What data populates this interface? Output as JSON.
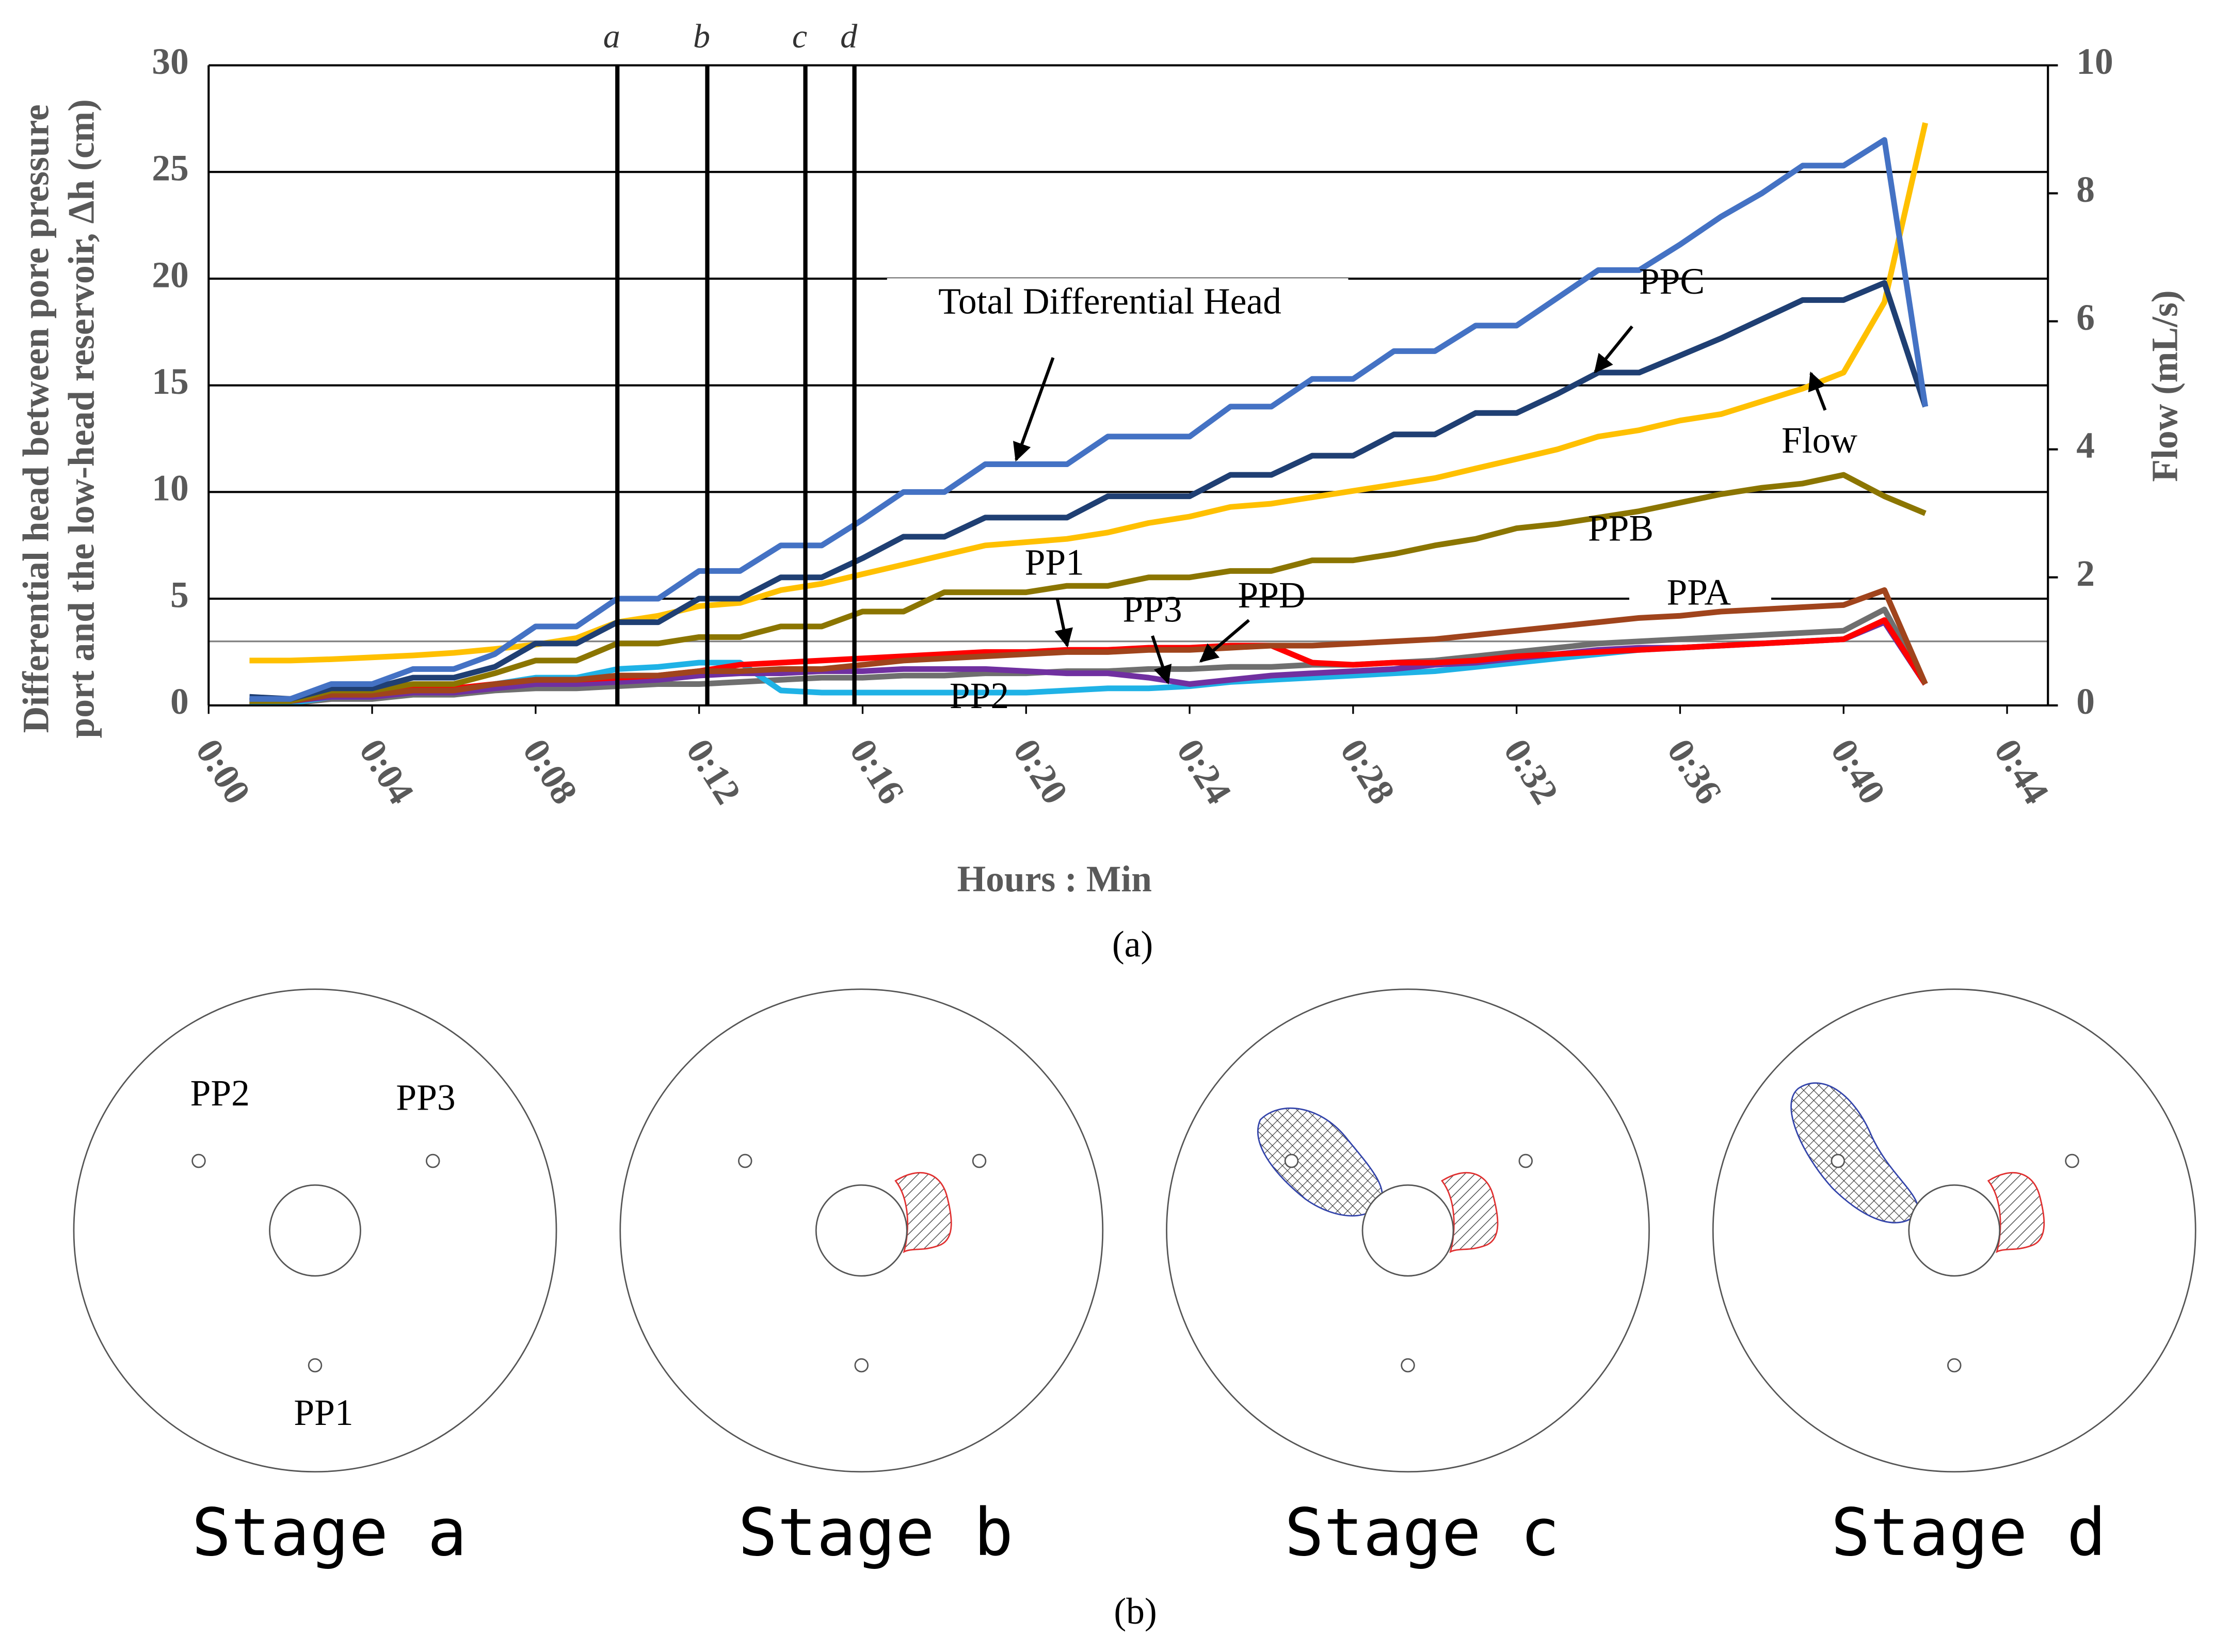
{
  "chart_data": {
    "type": "line",
    "xlabel": "Hours : Min",
    "ylabel": [
      "Differential head between pore pressure",
      "port and the low-head reservoir, Δh (cm)"
    ],
    "y2label": "Flow (mL/s)",
    "caption": "(a)",
    "xlim": [
      0,
      45
    ],
    "ylim": [
      0,
      30
    ],
    "y2lim": [
      0,
      10
    ],
    "xticks": [
      {
        "value": 0,
        "label": "0:00"
      },
      {
        "value": 4,
        "label": "0:04"
      },
      {
        "value": 8,
        "label": "0:08"
      },
      {
        "value": 12,
        "label": "0:12"
      },
      {
        "value": 16,
        "label": "0:16"
      },
      {
        "value": 20,
        "label": "0:20"
      },
      {
        "value": 24,
        "label": "0:24"
      },
      {
        "value": 28,
        "label": "0:28"
      },
      {
        "value": 32,
        "label": "0:32"
      },
      {
        "value": 36,
        "label": "0:36"
      },
      {
        "value": 40,
        "label": "0:40"
      },
      {
        "value": 44,
        "label": "0:44"
      }
    ],
    "yticks": [
      0,
      5,
      10,
      15,
      20,
      25,
      30
    ],
    "y2ticks": [
      0,
      2,
      4,
      6,
      8,
      10
    ],
    "grid": true,
    "hlines": [
      3
    ],
    "markers": [
      {
        "label": "a",
        "x": 10
      },
      {
        "label": "b",
        "x": 12.2
      },
      {
        "label": "c",
        "x": 14.6
      },
      {
        "label": "d",
        "x": 15.8
      }
    ],
    "x": [
      1,
      2,
      3,
      4,
      5,
      6,
      7,
      8,
      9,
      10,
      11,
      12,
      13,
      14,
      15,
      16,
      17,
      18,
      19,
      20,
      21,
      22,
      23,
      24,
      25,
      26,
      27,
      28,
      29,
      30,
      31,
      32,
      33,
      34,
      35,
      36,
      37,
      38,
      39,
      40,
      41,
      42
    ],
    "series": [
      {
        "name": "Total Differential Head",
        "color": "#4472c4",
        "values": [
          0.3,
          0.3,
          1,
          1,
          1.7,
          1.7,
          2.4,
          3.7,
          3.7,
          5,
          5,
          6.3,
          6.3,
          7.5,
          7.5,
          8.7,
          10,
          10,
          11.3,
          11.3,
          11.3,
          12.6,
          12.6,
          12.6,
          14,
          14,
          15.3,
          15.3,
          16.6,
          16.6,
          17.8,
          17.8,
          19.1,
          20.4,
          20.4,
          21.6,
          22.9,
          24,
          25.3,
          25.3,
          26.5,
          14
        ]
      },
      {
        "name": "PPC",
        "color": "#1f3f73",
        "values": [
          0.4,
          0.3,
          0.8,
          0.8,
          1.3,
          1.3,
          1.8,
          2.9,
          2.9,
          3.9,
          3.9,
          5,
          5,
          6,
          6,
          6.9,
          7.9,
          7.9,
          8.8,
          8.8,
          8.8,
          9.8,
          9.8,
          9.8,
          10.8,
          10.8,
          11.7,
          11.7,
          12.7,
          12.7,
          13.7,
          13.7,
          14.6,
          15.6,
          15.6,
          16.4,
          17.2,
          18.1,
          19,
          19,
          19.8,
          14
        ]
      },
      {
        "name": "Flow",
        "color": "#ffc000",
        "axis": "y2",
        "values": [
          0.7,
          0.7,
          0.72,
          0.75,
          0.78,
          0.82,
          0.88,
          0.95,
          1.05,
          1.3,
          1.4,
          1.55,
          1.6,
          1.8,
          1.9,
          2.05,
          2.2,
          2.35,
          2.5,
          2.55,
          2.6,
          2.7,
          2.85,
          2.95,
          3.1,
          3.15,
          3.25,
          3.35,
          3.45,
          3.55,
          3.7,
          3.85,
          4,
          4.2,
          4.3,
          4.45,
          4.55,
          4.75,
          4.95,
          5.2,
          6.3,
          9.1
        ]
      },
      {
        "name": "PPB",
        "color": "#8b7500",
        "values": [
          0.2,
          0.2,
          0.7,
          0.7,
          1,
          1,
          1.5,
          2.1,
          2.1,
          2.9,
          2.9,
          3.2,
          3.2,
          3.7,
          3.7,
          4.4,
          4.4,
          5.3,
          5.3,
          5.3,
          5.6,
          5.6,
          6,
          6,
          6.3,
          6.3,
          6.8,
          6.8,
          7.1,
          7.5,
          7.8,
          8.3,
          8.5,
          8.8,
          9.1,
          9.5,
          9.9,
          10.2,
          10.4,
          10.8,
          9.8,
          9
        ]
      },
      {
        "name": "PPA",
        "color": "#a0441c",
        "values": [
          0.2,
          0.2,
          0.5,
          0.5,
          0.7,
          0.7,
          1,
          1.2,
          1.2,
          1.4,
          1.4,
          1.6,
          1.6,
          1.7,
          1.7,
          1.9,
          2.1,
          2.2,
          2.3,
          2.4,
          2.5,
          2.5,
          2.6,
          2.6,
          2.7,
          2.8,
          2.8,
          2.9,
          3,
          3.1,
          3.3,
          3.5,
          3.7,
          3.9,
          4.1,
          4.2,
          4.4,
          4.5,
          4.6,
          4.7,
          5.4,
          1
        ]
      },
      {
        "name": "PP1",
        "color": "#ff0000",
        "values": [
          0.2,
          0.2,
          0.5,
          0.5,
          0.8,
          0.8,
          1,
          1.2,
          1.2,
          1.3,
          1.4,
          1.6,
          1.9,
          2,
          2.1,
          2.2,
          2.3,
          2.4,
          2.5,
          2.5,
          2.6,
          2.6,
          2.7,
          2.7,
          2.8,
          2.8,
          2,
          1.9,
          2,
          2,
          2.1,
          2.3,
          2.4,
          2.5,
          2.6,
          2.7,
          2.8,
          2.9,
          3,
          3.1,
          4,
          1
        ]
      },
      {
        "name": "PP2",
        "color": "#1fb2e6",
        "values": [
          0.1,
          0.1,
          0.4,
          0.4,
          0.7,
          0.7,
          1,
          1.3,
          1.3,
          1.7,
          1.8,
          2,
          2,
          0.7,
          0.6,
          0.6,
          0.6,
          0.6,
          0.6,
          0.6,
          0.7,
          0.8,
          0.8,
          0.9,
          1.1,
          1.2,
          1.3,
          1.4,
          1.5,
          1.6,
          1.8,
          2,
          2.2,
          2.4,
          2.6,
          2.7,
          2.8,
          2.9,
          3,
          3.1,
          3.9,
          1
        ]
      },
      {
        "name": "PP3",
        "color": "#7030a0",
        "values": [
          0.2,
          0.2,
          0.4,
          0.4,
          0.6,
          0.6,
          0.8,
          1,
          1,
          1.1,
          1.2,
          1.4,
          1.5,
          1.5,
          1.6,
          1.6,
          1.7,
          1.7,
          1.7,
          1.6,
          1.5,
          1.5,
          1.3,
          1,
          1.2,
          1.4,
          1.5,
          1.6,
          1.7,
          1.9,
          2,
          2.2,
          2.4,
          2.6,
          2.7,
          2.7,
          2.8,
          2.9,
          3,
          3.1,
          3.9,
          1
        ]
      },
      {
        "name": "PPD",
        "color": "#6f6f6f",
        "values": [
          0.1,
          0.1,
          0.3,
          0.3,
          0.5,
          0.5,
          0.7,
          0.8,
          0.8,
          0.9,
          1,
          1,
          1.1,
          1.2,
          1.3,
          1.3,
          1.4,
          1.4,
          1.5,
          1.5,
          1.6,
          1.6,
          1.7,
          1.7,
          1.8,
          1.8,
          1.9,
          1.9,
          2,
          2.1,
          2.3,
          2.5,
          2.7,
          2.9,
          3,
          3.1,
          3.2,
          3.3,
          3.4,
          3.5,
          4.5,
          1
        ]
      }
    ]
  },
  "diagrams": {
    "caption": "(b)",
    "stages": [
      "Stage a",
      "Stage b",
      "Stage c",
      "Stage d"
    ],
    "port_labels": [
      "PP2",
      "PP3",
      "PP1"
    ]
  }
}
